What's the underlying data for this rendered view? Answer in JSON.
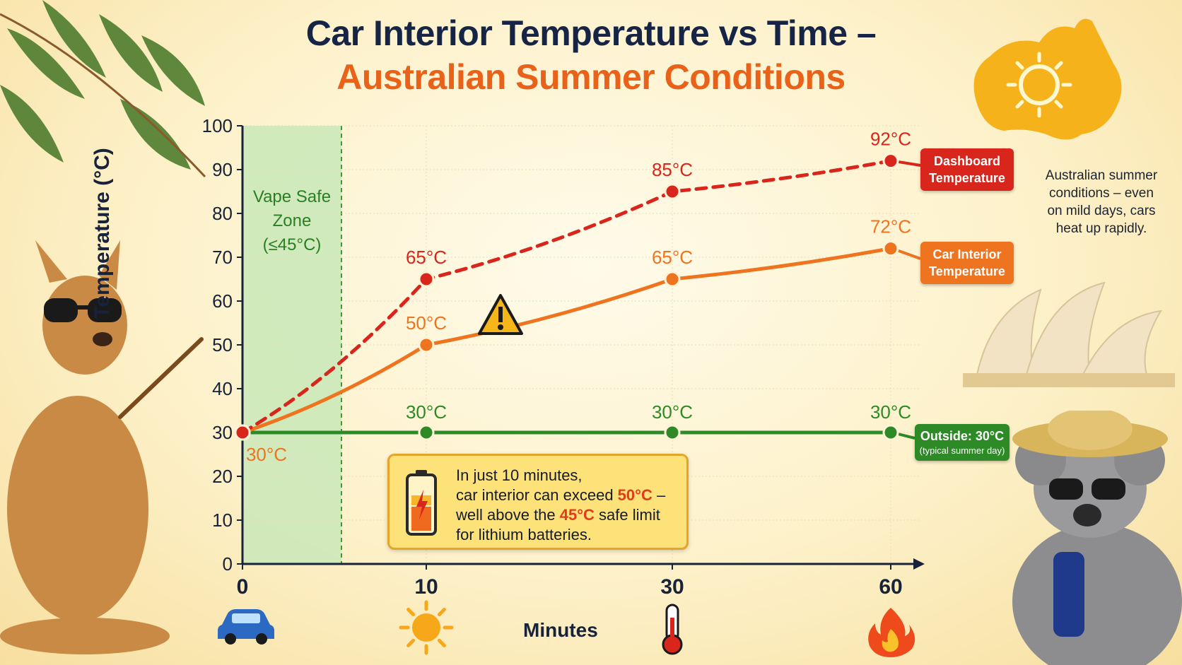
{
  "title": {
    "line1": "Car Interior Temperature vs Time –",
    "line2": "Australian Summer Conditions"
  },
  "colors": {
    "dashboard": "#d9261c",
    "interior": "#ee7420",
    "outside": "#2d8a26",
    "safe_zone": "#c9e8b8",
    "axis": "#182238"
  },
  "icons": {
    "x_0": "car-icon",
    "x_10": "sun-icon",
    "x_30": "thermometer-icon",
    "x_60": "fire-icon",
    "warning": "warning-triangle-icon",
    "battery": "battery-icon",
    "map": "australia-sun-map-icon"
  },
  "safe_zone": {
    "label_lines": [
      "Vape Safe",
      "Zone",
      "(≤45°C)"
    ]
  },
  "callouts": {
    "dashboard_lines": [
      "Dashboard",
      "Temperature"
    ],
    "interior_lines": [
      "Car Interior",
      "Temperature"
    ],
    "outside_main": "Outside: 30°C",
    "outside_sub": "(typical summer day)"
  },
  "side_note_lines": [
    "Australian summer",
    "conditions – even",
    "on mild days, cars",
    "heat up rapidly."
  ],
  "warning": {
    "line1": "In just 10 minutes,",
    "line2_pre": "car interior can exceed ",
    "line2_hot": "50°C",
    "line2_post": " –",
    "line3_pre": "well above the ",
    "line3_hot": "45°C",
    "line3_post": " safe limit",
    "line4": "for lithium batteries."
  },
  "chart_data": {
    "type": "line",
    "xlabel": "Minutes",
    "ylabel": "Temperature (°C)",
    "x_ticks": [
      0,
      10,
      30,
      60
    ],
    "y_ticks": [
      0,
      10,
      20,
      30,
      40,
      50,
      60,
      70,
      80,
      90,
      100
    ],
    "ylim": [
      0,
      100
    ],
    "safe_zone_max_c": 45,
    "series": [
      {
        "key": "dashboard",
        "style": "dashed",
        "values": [
          30,
          65,
          85,
          92
        ],
        "point_labels": [
          "",
          "65°C",
          "85°C",
          "92°C"
        ]
      },
      {
        "key": "interior",
        "style": "solid",
        "values": [
          30,
          50,
          65,
          72
        ],
        "point_labels": [
          "30°C",
          "50°C",
          "65°C",
          "72°C"
        ]
      },
      {
        "key": "outside",
        "style": "solid",
        "values": [
          30,
          30,
          30,
          30
        ],
        "point_labels": [
          "",
          "30°C",
          "30°C",
          "30°C"
        ]
      }
    ]
  }
}
